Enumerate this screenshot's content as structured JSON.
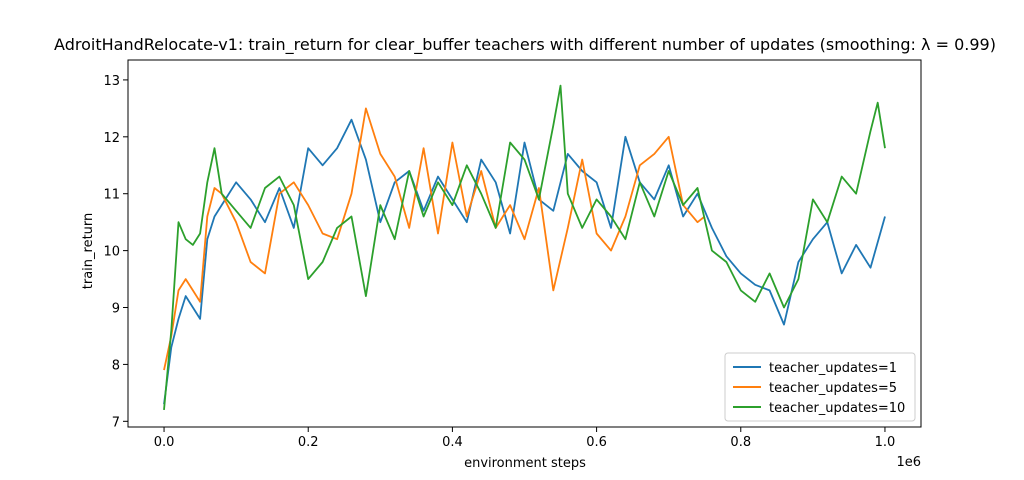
{
  "chart_data": {
    "type": "line",
    "title": "AdroitHandRelocate-v1: train_return for clear_buffer teachers with different number of updates (smoothing: λ = 0.99)",
    "xlabel": "environment steps",
    "ylabel": "train_return",
    "x_offset_text": "1e6",
    "xlim": [
      -0.05,
      1.05
    ],
    "ylim": [
      6.9,
      13.35
    ],
    "xticks": [
      0.0,
      0.2,
      0.4,
      0.6,
      0.8,
      1.0
    ],
    "xtick_labels": [
      "0.0",
      "0.2",
      "0.4",
      "0.6",
      "0.8",
      "1.0"
    ],
    "yticks": [
      7,
      8,
      9,
      10,
      11,
      12,
      13
    ],
    "ytick_labels": [
      "7",
      "8",
      "9",
      "10",
      "11",
      "12",
      "13"
    ],
    "grid": false,
    "legend_position": "lower-right",
    "series": [
      {
        "name": "teacher_updates=1",
        "color": "#1f77b4",
        "x": [
          0.0,
          0.01,
          0.02,
          0.03,
          0.04,
          0.05,
          0.06,
          0.07,
          0.08,
          0.1,
          0.12,
          0.14,
          0.16,
          0.18,
          0.2,
          0.22,
          0.24,
          0.26,
          0.28,
          0.3,
          0.32,
          0.34,
          0.36,
          0.38,
          0.4,
          0.42,
          0.44,
          0.46,
          0.48,
          0.5,
          0.52,
          0.54,
          0.56,
          0.58,
          0.6,
          0.62,
          0.64,
          0.66,
          0.68,
          0.7,
          0.72,
          0.74,
          0.76,
          0.78,
          0.8,
          0.82,
          0.84,
          0.86,
          0.88,
          0.9,
          0.92,
          0.94,
          0.96,
          0.98,
          1.0
        ],
        "y": [
          7.3,
          8.3,
          8.8,
          9.2,
          9.0,
          8.8,
          10.2,
          10.6,
          10.8,
          11.2,
          10.9,
          10.5,
          11.1,
          10.4,
          11.8,
          11.5,
          11.8,
          12.3,
          11.6,
          10.5,
          11.2,
          11.4,
          10.7,
          11.3,
          10.9,
          10.5,
          11.6,
          11.2,
          10.3,
          11.9,
          10.9,
          10.7,
          11.7,
          11.4,
          11.2,
          10.4,
          12.0,
          11.2,
          10.9,
          11.5,
          10.6,
          11.0,
          10.4,
          9.9,
          9.6,
          9.4,
          9.3,
          8.7,
          9.8,
          10.2,
          10.5,
          9.6,
          10.1,
          9.7,
          10.6
        ]
      },
      {
        "name": "teacher_updates=5",
        "color": "#ff7f0e",
        "x": [
          0.0,
          0.01,
          0.02,
          0.03,
          0.04,
          0.05,
          0.06,
          0.07,
          0.08,
          0.1,
          0.12,
          0.14,
          0.16,
          0.18,
          0.2,
          0.22,
          0.24,
          0.26,
          0.28,
          0.3,
          0.32,
          0.34,
          0.36,
          0.38,
          0.4,
          0.42,
          0.44,
          0.46,
          0.48,
          0.5,
          0.52,
          0.54,
          0.56,
          0.58,
          0.6,
          0.62,
          0.64,
          0.66,
          0.68,
          0.7,
          0.72,
          0.74,
          0.75
        ],
        "y": [
          7.9,
          8.5,
          9.3,
          9.5,
          9.3,
          9.1,
          10.6,
          11.1,
          11.0,
          10.5,
          9.8,
          9.6,
          11.0,
          11.2,
          10.8,
          10.3,
          10.2,
          11.0,
          12.5,
          11.7,
          11.3,
          10.4,
          11.8,
          10.3,
          11.9,
          10.6,
          11.4,
          10.4,
          10.8,
          10.2,
          11.1,
          9.3,
          10.4,
          11.6,
          10.3,
          10.0,
          10.6,
          11.5,
          11.7,
          12.0,
          10.8,
          10.5,
          10.6
        ]
      },
      {
        "name": "teacher_updates=10",
        "color": "#2ca02c",
        "x": [
          0.0,
          0.01,
          0.02,
          0.03,
          0.04,
          0.05,
          0.06,
          0.07,
          0.08,
          0.1,
          0.12,
          0.14,
          0.16,
          0.18,
          0.2,
          0.22,
          0.24,
          0.26,
          0.28,
          0.3,
          0.32,
          0.34,
          0.36,
          0.38,
          0.4,
          0.42,
          0.44,
          0.46,
          0.48,
          0.5,
          0.52,
          0.54,
          0.55,
          0.56,
          0.58,
          0.6,
          0.62,
          0.64,
          0.66,
          0.68,
          0.7,
          0.72,
          0.74,
          0.76,
          0.78,
          0.8,
          0.82,
          0.84,
          0.86,
          0.88,
          0.9,
          0.92,
          0.94,
          0.96,
          0.98,
          0.99,
          1.0
        ],
        "y": [
          7.2,
          8.6,
          10.5,
          10.2,
          10.1,
          10.3,
          11.2,
          11.8,
          11.0,
          10.7,
          10.4,
          11.1,
          11.3,
          10.8,
          9.5,
          9.8,
          10.4,
          10.6,
          9.2,
          10.8,
          10.2,
          11.4,
          10.6,
          11.2,
          10.8,
          11.5,
          11.0,
          10.4,
          11.9,
          11.6,
          10.9,
          12.2,
          12.9,
          11.0,
          10.4,
          10.9,
          10.6,
          10.2,
          11.2,
          10.6,
          11.4,
          10.8,
          11.1,
          10.0,
          9.8,
          9.3,
          9.1,
          9.6,
          9.0,
          9.5,
          10.9,
          10.5,
          11.3,
          11.0,
          12.1,
          12.6,
          11.8
        ]
      }
    ]
  }
}
